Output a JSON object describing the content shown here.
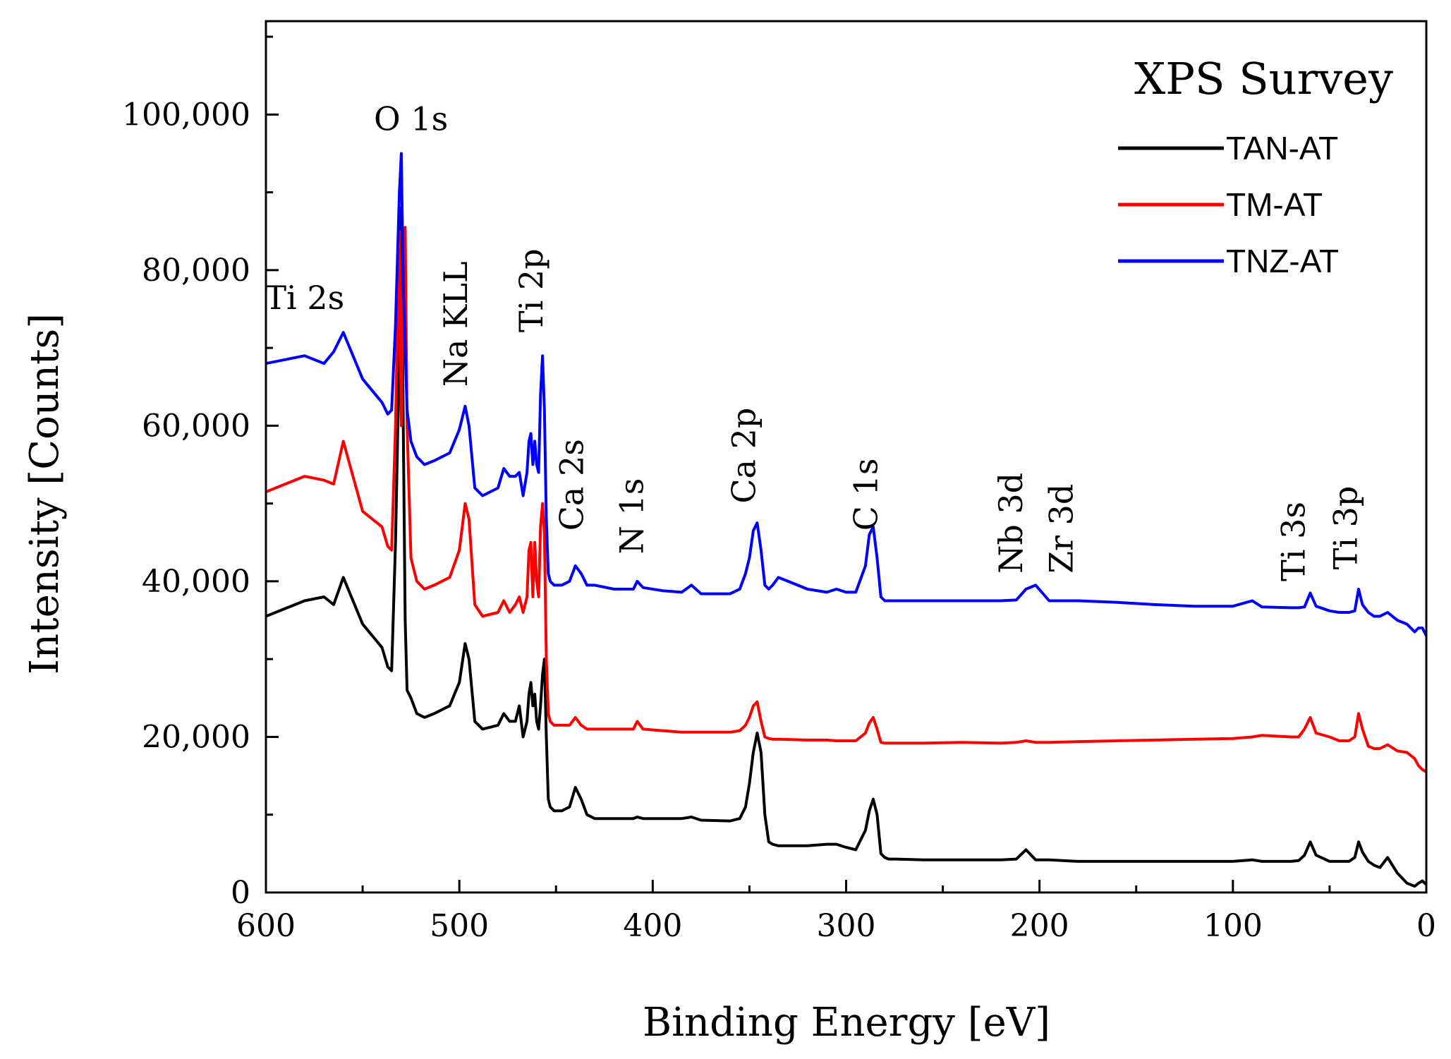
{
  "chart_data": {
    "type": "line",
    "title": "XPS Survey",
    "xlabel": "Binding Energy [eV]",
    "ylabel": "Intensity [Counts]",
    "xlim": [
      600,
      0
    ],
    "ylim": [
      0,
      112000
    ],
    "x_ticks": [
      600,
      500,
      400,
      300,
      200,
      100,
      0
    ],
    "x_tick_labels": [
      "600",
      "500",
      "400",
      "300",
      "200",
      "100",
      "0"
    ],
    "y_ticks": [
      0,
      20000,
      40000,
      60000,
      80000,
      100000
    ],
    "y_tick_labels": [
      "0",
      "20,000",
      "40,000",
      "60,000",
      "80,000",
      "100,000"
    ],
    "legend": {
      "position": "top-right",
      "entries": [
        {
          "label": "TAN-AT",
          "color": "#000000"
        },
        {
          "label": "TM-AT",
          "color": "#ff0000"
        },
        {
          "label": "TNZ-AT",
          "color": "#0000ff"
        }
      ]
    },
    "peak_labels": [
      {
        "text": "Ti 2s",
        "x": 580,
        "y": 75000,
        "rotated": false
      },
      {
        "text": "O 1s",
        "x": 525,
        "y": 98000,
        "rotated": false
      },
      {
        "text": "Na KLL",
        "x": 496,
        "y": 65000,
        "rotated": true
      },
      {
        "text": "Ti 2p",
        "x": 457,
        "y": 72000,
        "rotated": true
      },
      {
        "text": "Ca 2s",
        "x": 436,
        "y": 46500,
        "rotated": true
      },
      {
        "text": "N 1s",
        "x": 405,
        "y": 43500,
        "rotated": true
      },
      {
        "text": "Ca 2p",
        "x": 347,
        "y": 50000,
        "rotated": true
      },
      {
        "text": "C 1s",
        "x": 284,
        "y": 46500,
        "rotated": true
      },
      {
        "text": "Nb 3d",
        "x": 209,
        "y": 41000,
        "rotated": true
      },
      {
        "text": "Zr 3d",
        "x": 183,
        "y": 41000,
        "rotated": true
      },
      {
        "text": "Ti 3s",
        "x": 63,
        "y": 40000,
        "rotated": true
      },
      {
        "text": "Ti 3p",
        "x": 36,
        "y": 41500,
        "rotated": true
      }
    ],
    "series": [
      {
        "name": "TAN-AT",
        "color": "#000000",
        "x": [
          600,
          590,
          580,
          570,
          565,
          560,
          550,
          545,
          540,
          537,
          535,
          533,
          531,
          530,
          529,
          528,
          527,
          525,
          522,
          518,
          513,
          505,
          500,
          497,
          495,
          492,
          488,
          480,
          477,
          474,
          471,
          469,
          467,
          465,
          464,
          463,
          462,
          461,
          460,
          459,
          458,
          457,
          456,
          455,
          454,
          453,
          451,
          447,
          443,
          440,
          437,
          434,
          430,
          420,
          410,
          408,
          405,
          395,
          385,
          380,
          375,
          360,
          355,
          352,
          350,
          348,
          346,
          344,
          342,
          340,
          338,
          335,
          320,
          310,
          305,
          300,
          295,
          290,
          288,
          286,
          284,
          282,
          280,
          278,
          275,
          260,
          240,
          220,
          212,
          207,
          202,
          195,
          180,
          160,
          140,
          120,
          100,
          90,
          85,
          70,
          66,
          63,
          60,
          57,
          50,
          45,
          40,
          37,
          35,
          33,
          30,
          27,
          24,
          20,
          15,
          10,
          6,
          4,
          2,
          0
        ],
        "y": [
          35500,
          36500,
          37500,
          38000,
          37000,
          40500,
          34500,
          33000,
          31500,
          29000,
          28500,
          45000,
          70000,
          88000,
          60000,
          35000,
          26000,
          25000,
          23000,
          22500,
          23000,
          24000,
          27000,
          32000,
          30000,
          22000,
          21000,
          21500,
          23000,
          22000,
          22000,
          24000,
          20000,
          22000,
          25500,
          27000,
          24000,
          25500,
          22000,
          21000,
          24000,
          28000,
          30000,
          20000,
          12000,
          11000,
          10500,
          10500,
          11000,
          13500,
          12000,
          10000,
          9500,
          9500,
          9500,
          9700,
          9500,
          9500,
          9500,
          9700,
          9300,
          9200,
          9500,
          11000,
          14000,
          18000,
          20500,
          18000,
          10000,
          6500,
          6200,
          6000,
          6000,
          6200,
          6200,
          5800,
          5500,
          8000,
          10500,
          12000,
          10000,
          5000,
          4500,
          4300,
          4300,
          4200,
          4200,
          4200,
          4300,
          5500,
          4200,
          4200,
          4000,
          4000,
          4000,
          4000,
          4000,
          4200,
          4000,
          4000,
          4100,
          4800,
          6500,
          4800,
          4000,
          4000,
          4000,
          4500,
          6500,
          5200,
          4000,
          3500,
          3200,
          4500,
          2500,
          1200,
          800,
          1200,
          1500,
          1000
        ]
      },
      {
        "name": "TM-AT",
        "color": "#ff0000",
        "x": [
          600,
          590,
          580,
          570,
          565,
          560,
          550,
          545,
          540,
          537,
          535,
          533,
          531,
          530,
          529,
          528,
          527,
          525,
          522,
          518,
          513,
          505,
          500,
          497,
          495,
          492,
          488,
          480,
          477,
          474,
          471,
          469,
          467,
          465,
          464,
          463,
          462,
          461,
          460,
          459,
          458,
          457,
          456,
          455,
          454,
          453,
          451,
          447,
          443,
          440,
          437,
          434,
          430,
          420,
          410,
          408,
          405,
          395,
          385,
          380,
          375,
          360,
          355,
          352,
          350,
          348,
          346,
          344,
          342,
          340,
          338,
          335,
          320,
          310,
          305,
          300,
          295,
          290,
          288,
          286,
          284,
          282,
          280,
          278,
          275,
          260,
          240,
          220,
          212,
          207,
          202,
          195,
          180,
          160,
          140,
          120,
          100,
          90,
          85,
          70,
          66,
          63,
          60,
          57,
          50,
          45,
          40,
          37,
          35,
          33,
          30,
          27,
          24,
          20,
          15,
          10,
          6,
          4,
          2,
          0
        ],
        "y": [
          51500,
          52500,
          53500,
          53000,
          52500,
          58000,
          49000,
          48000,
          47000,
          44500,
          44000,
          60000,
          85000,
          60000,
          80000,
          85500,
          60000,
          43000,
          40000,
          39000,
          39500,
          40500,
          44000,
          50000,
          48000,
          37000,
          35500,
          36000,
          37500,
          36000,
          37000,
          38000,
          36000,
          38000,
          44000,
          45000,
          38000,
          45000,
          40000,
          38000,
          47000,
          50000,
          46000,
          30000,
          23000,
          22000,
          21500,
          21500,
          21500,
          22500,
          21500,
          21000,
          21000,
          21000,
          21000,
          22000,
          21000,
          20800,
          20600,
          20600,
          20600,
          20600,
          20800,
          21500,
          22500,
          24000,
          24500,
          22000,
          20000,
          19800,
          19700,
          19700,
          19600,
          19600,
          19500,
          19500,
          19500,
          20500,
          21800,
          22500,
          21000,
          19300,
          19200,
          19200,
          19200,
          19200,
          19300,
          19200,
          19300,
          19500,
          19300,
          19300,
          19400,
          19500,
          19600,
          19700,
          19800,
          20000,
          20200,
          20000,
          20000,
          21000,
          22500,
          20500,
          20000,
          19500,
          19500,
          20000,
          23000,
          21000,
          18800,
          18500,
          18500,
          19000,
          18200,
          18000,
          17200,
          16300,
          15800,
          15500
        ]
      },
      {
        "name": "TNZ-AT",
        "color": "#0000ff",
        "x": [
          600,
          590,
          580,
          570,
          565,
          560,
          550,
          545,
          540,
          537,
          535,
          533,
          531,
          530,
          529,
          528,
          527,
          525,
          522,
          518,
          513,
          505,
          500,
          497,
          495,
          492,
          488,
          480,
          477,
          474,
          471,
          469,
          467,
          465,
          464,
          463,
          462,
          461,
          460,
          459,
          458,
          457,
          456,
          455,
          454,
          453,
          451,
          447,
          443,
          440,
          437,
          434,
          430,
          420,
          410,
          408,
          405,
          395,
          385,
          380,
          375,
          360,
          355,
          352,
          350,
          348,
          346,
          344,
          342,
          340,
          338,
          335,
          320,
          310,
          305,
          300,
          295,
          290,
          288,
          286,
          284,
          282,
          280,
          278,
          275,
          260,
          240,
          220,
          212,
          207,
          202,
          195,
          180,
          160,
          140,
          120,
          100,
          90,
          85,
          70,
          66,
          63,
          60,
          57,
          50,
          45,
          40,
          37,
          35,
          33,
          30,
          27,
          24,
          20,
          15,
          10,
          6,
          4,
          2,
          0
        ],
        "y": [
          68000,
          68500,
          69000,
          68000,
          69500,
          72000,
          66000,
          64500,
          63000,
          61500,
          62000,
          73000,
          90000,
          95000,
          78000,
          70000,
          62000,
          58000,
          56000,
          55000,
          55500,
          56500,
          59500,
          62500,
          60000,
          52000,
          51000,
          52000,
          54500,
          53500,
          53500,
          54000,
          51000,
          54000,
          58000,
          59000,
          55000,
          58000,
          55000,
          54000,
          64000,
          69000,
          62000,
          48000,
          41000,
          40000,
          39500,
          39500,
          40000,
          42000,
          41000,
          39500,
          39500,
          39000,
          39000,
          40000,
          39200,
          38800,
          38600,
          39500,
          38400,
          38400,
          39000,
          41000,
          43000,
          46500,
          47500,
          44000,
          39500,
          39000,
          39500,
          40500,
          39000,
          38600,
          39000,
          38600,
          38600,
          42000,
          46000,
          47000,
          43000,
          38000,
          37500,
          37500,
          37500,
          37500,
          37500,
          37500,
          37600,
          39000,
          39500,
          37500,
          37500,
          37300,
          37000,
          36800,
          36800,
          37500,
          36700,
          36600,
          36600,
          36700,
          38500,
          36800,
          36200,
          36000,
          36000,
          36200,
          39000,
          37000,
          36000,
          35500,
          35500,
          36000,
          35000,
          34500,
          33500,
          34000,
          34000,
          33000
        ]
      }
    ]
  }
}
